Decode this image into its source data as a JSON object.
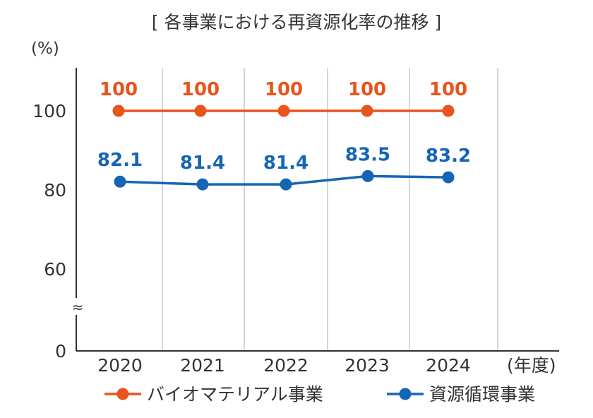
{
  "chart_data": {
    "type": "line",
    "title": "[ 各事業における再資源化率の推移 ]",
    "ylabel": "(%)",
    "xlabel": "(年度)",
    "categories": [
      "2020",
      "2021",
      "2022",
      "2023",
      "2024"
    ],
    "y_ticks": [
      "100",
      "80",
      "60",
      "0"
    ],
    "axis_break_symbol": "≈",
    "ylim": [
      0,
      110
    ],
    "series": [
      {
        "name": "バイオマテリアル事業",
        "color": "#E8541C",
        "values": [
          100,
          100,
          100,
          100,
          100
        ],
        "labels": [
          "100",
          "100",
          "100",
          "100",
          "100"
        ]
      },
      {
        "name": "資源循環事業",
        "color": "#1565B5",
        "values": [
          82.1,
          81.4,
          81.4,
          83.5,
          83.2
        ],
        "labels": [
          "82.1",
          "81.4",
          "81.4",
          "83.5",
          "83.2"
        ]
      }
    ]
  }
}
